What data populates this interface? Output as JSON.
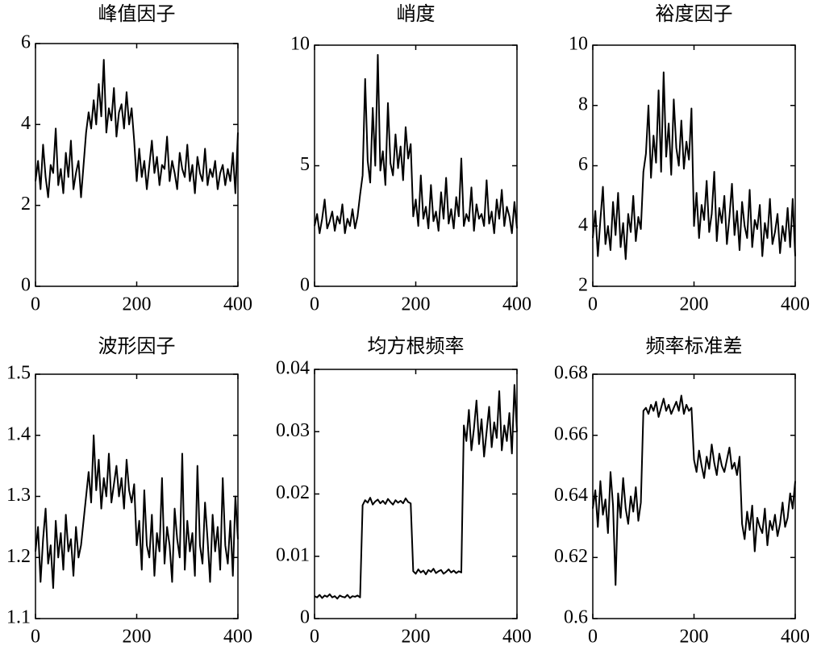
{
  "chart_data": [
    {
      "type": "line",
      "title": "峰值因子",
      "color": "#000000",
      "x": [
        0,
        5,
        10,
        15,
        20,
        25,
        30,
        35,
        40,
        45,
        50,
        55,
        60,
        65,
        70,
        75,
        80,
        85,
        90,
        95,
        100,
        105,
        110,
        115,
        120,
        125,
        130,
        135,
        140,
        145,
        150,
        155,
        160,
        165,
        170,
        175,
        180,
        185,
        190,
        195,
        200,
        205,
        210,
        215,
        220,
        225,
        230,
        235,
        240,
        245,
        250,
        255,
        260,
        265,
        270,
        275,
        280,
        285,
        290,
        295,
        300,
        305,
        310,
        315,
        320,
        325,
        330,
        335,
        340,
        345,
        350,
        355,
        360,
        365,
        370,
        375,
        380,
        385,
        390,
        395,
        400
      ],
      "values": [
        2.6,
        3.1,
        2.4,
        3.5,
        2.7,
        2.2,
        3.0,
        2.8,
        3.9,
        2.5,
        2.9,
        2.3,
        3.3,
        2.7,
        3.6,
        2.4,
        2.8,
        3.1,
        2.2,
        3.0,
        3.8,
        4.3,
        3.9,
        4.6,
        4.0,
        5.0,
        4.2,
        5.6,
        3.8,
        4.4,
        4.1,
        4.9,
        3.7,
        4.3,
        4.5,
        3.9,
        4.8,
        4.0,
        4.4,
        3.6,
        2.6,
        3.4,
        2.7,
        3.1,
        2.4,
        3.0,
        3.6,
        2.8,
        3.2,
        2.5,
        3.0,
        2.9,
        3.7,
        2.6,
        3.1,
        2.8,
        2.4,
        3.3,
        2.9,
        2.7,
        3.5,
        2.6,
        3.0,
        2.3,
        3.2,
        2.8,
        2.6,
        3.4,
        2.5,
        2.9,
        2.7,
        3.1,
        2.4,
        2.8,
        3.0,
        2.5,
        2.9,
        2.6,
        3.3,
        2.3,
        3.8
      ],
      "xlim": [
        0,
        400
      ],
      "xticks": [
        0,
        200,
        400
      ],
      "ylim": [
        0,
        6
      ],
      "yticks": [
        0,
        2,
        4,
        6
      ]
    },
    {
      "type": "line",
      "title": "峭度",
      "color": "#000000",
      "x": [
        0,
        5,
        10,
        15,
        20,
        25,
        30,
        35,
        40,
        45,
        50,
        55,
        60,
        65,
        70,
        75,
        80,
        85,
        90,
        95,
        100,
        105,
        110,
        115,
        120,
        125,
        130,
        135,
        140,
        145,
        150,
        155,
        160,
        165,
        170,
        175,
        180,
        185,
        190,
        195,
        200,
        205,
        210,
        215,
        220,
        225,
        230,
        235,
        240,
        245,
        250,
        255,
        260,
        265,
        270,
        275,
        280,
        285,
        290,
        295,
        300,
        305,
        310,
        315,
        320,
        325,
        330,
        335,
        340,
        345,
        350,
        355,
        360,
        365,
        370,
        375,
        380,
        385,
        390,
        395,
        400
      ],
      "values": [
        2.5,
        3.0,
        2.2,
        2.8,
        3.6,
        2.4,
        2.7,
        3.1,
        2.3,
        2.9,
        2.6,
        3.4,
        2.2,
        2.8,
        2.5,
        3.2,
        2.4,
        2.9,
        3.8,
        4.6,
        8.6,
        5.2,
        4.3,
        7.4,
        5.0,
        9.6,
        4.8,
        5.6,
        4.2,
        7.6,
        5.1,
        4.6,
        6.3,
        4.9,
        5.8,
        4.4,
        6.6,
        5.3,
        5.9,
        2.9,
        3.6,
        2.5,
        4.6,
        2.8,
        3.3,
        2.4,
        4.2,
        2.7,
        3.1,
        2.3,
        3.9,
        2.8,
        4.5,
        2.6,
        3.2,
        2.4,
        3.7,
        2.9,
        5.3,
        2.5,
        3.0,
        2.7,
        4.1,
        2.3,
        3.4,
        2.8,
        3.0,
        2.5,
        4.4,
        2.6,
        3.1,
        2.2,
        3.6,
        2.8,
        4.0,
        2.5,
        3.3,
        2.9,
        2.2,
        3.5,
        2.4
      ],
      "xlim": [
        0,
        400
      ],
      "xticks": [
        0,
        200,
        400
      ],
      "ylim": [
        0,
        10
      ],
      "yticks": [
        0,
        5,
        10
      ]
    },
    {
      "type": "line",
      "title": "裕度因子",
      "color": "#000000",
      "x": [
        0,
        5,
        10,
        15,
        20,
        25,
        30,
        35,
        40,
        45,
        50,
        55,
        60,
        65,
        70,
        75,
        80,
        85,
        90,
        95,
        100,
        105,
        110,
        115,
        120,
        125,
        130,
        135,
        140,
        145,
        150,
        155,
        160,
        165,
        170,
        175,
        180,
        185,
        190,
        195,
        200,
        205,
        210,
        215,
        220,
        225,
        230,
        235,
        240,
        245,
        250,
        255,
        260,
        265,
        270,
        275,
        280,
        285,
        290,
        295,
        300,
        305,
        310,
        315,
        320,
        325,
        330,
        335,
        340,
        345,
        350,
        355,
        360,
        365,
        370,
        375,
        380,
        385,
        390,
        395,
        400
      ],
      "values": [
        3.6,
        4.5,
        3.0,
        4.2,
        5.3,
        3.4,
        4.0,
        3.2,
        4.8,
        3.7,
        5.1,
        3.3,
        4.1,
        2.9,
        4.4,
        3.8,
        5.0,
        3.5,
        4.3,
        3.9,
        5.8,
        6.4,
        8.0,
        5.6,
        7.0,
        6.1,
        8.5,
        5.8,
        9.1,
        6.3,
        7.4,
        5.7,
        8.2,
        6.6,
        6.0,
        7.5,
        5.9,
        6.8,
        6.2,
        7.9,
        4.0,
        5.1,
        3.6,
        4.7,
        4.2,
        5.5,
        3.8,
        4.4,
        5.8,
        3.5,
        4.6,
        4.1,
        5.0,
        3.4,
        4.3,
        5.4,
        3.7,
        4.5,
        3.2,
        4.8,
        4.0,
        3.6,
        5.2,
        3.3,
        4.2,
        3.9,
        4.7,
        3.0,
        4.1,
        3.6,
        4.9,
        3.4,
        3.8,
        4.4,
        3.1,
        4.0,
        3.5,
        4.6,
        3.3,
        4.9,
        3.0
      ],
      "xlim": [
        0,
        400
      ],
      "xticks": [
        0,
        200,
        400
      ],
      "ylim": [
        2,
        10
      ],
      "yticks": [
        2,
        4,
        6,
        8,
        10
      ]
    },
    {
      "type": "line",
      "title": "波形因子",
      "color": "#000000",
      "x": [
        0,
        5,
        10,
        15,
        20,
        25,
        30,
        35,
        40,
        45,
        50,
        55,
        60,
        65,
        70,
        75,
        80,
        85,
        90,
        95,
        100,
        105,
        110,
        115,
        120,
        125,
        130,
        135,
        140,
        145,
        150,
        155,
        160,
        165,
        170,
        175,
        180,
        185,
        190,
        195,
        200,
        205,
        210,
        215,
        220,
        225,
        230,
        235,
        240,
        245,
        250,
        255,
        260,
        265,
        270,
        275,
        280,
        285,
        290,
        295,
        300,
        305,
        310,
        315,
        320,
        325,
        330,
        335,
        340,
        345,
        350,
        355,
        360,
        365,
        370,
        375,
        380,
        385,
        390,
        395,
        400
      ],
      "values": [
        1.21,
        1.25,
        1.16,
        1.23,
        1.28,
        1.19,
        1.22,
        1.15,
        1.26,
        1.2,
        1.24,
        1.18,
        1.27,
        1.21,
        1.23,
        1.17,
        1.25,
        1.2,
        1.22,
        1.26,
        1.3,
        1.34,
        1.29,
        1.4,
        1.31,
        1.36,
        1.28,
        1.33,
        1.3,
        1.37,
        1.29,
        1.32,
        1.35,
        1.3,
        1.33,
        1.28,
        1.36,
        1.31,
        1.29,
        1.32,
        1.22,
        1.26,
        1.18,
        1.31,
        1.22,
        1.2,
        1.27,
        1.17,
        1.24,
        1.21,
        1.33,
        1.19,
        1.25,
        1.22,
        1.16,
        1.28,
        1.23,
        1.2,
        1.37,
        1.18,
        1.26,
        1.21,
        1.24,
        1.17,
        1.35,
        1.22,
        1.19,
        1.29,
        1.23,
        1.16,
        1.27,
        1.21,
        1.25,
        1.18,
        1.33,
        1.22,
        1.19,
        1.26,
        1.17,
        1.3,
        1.23
      ],
      "xlim": [
        0,
        400
      ],
      "xticks": [
        0,
        200,
        400
      ],
      "ylim": [
        1.1,
        1.5
      ],
      "yticks": [
        1.1,
        1.2,
        1.3,
        1.4,
        1.5
      ]
    },
    {
      "type": "line",
      "title": "均方根频率",
      "color": "#000000",
      "x": [
        0,
        5,
        10,
        15,
        20,
        25,
        30,
        35,
        40,
        45,
        50,
        55,
        60,
        65,
        70,
        75,
        80,
        85,
        90,
        95,
        100,
        105,
        110,
        115,
        120,
        125,
        130,
        135,
        140,
        145,
        150,
        155,
        160,
        165,
        170,
        175,
        180,
        185,
        190,
        195,
        200,
        205,
        210,
        215,
        220,
        225,
        230,
        235,
        240,
        245,
        250,
        255,
        260,
        265,
        270,
        275,
        280,
        285,
        290,
        295,
        300,
        305,
        310,
        315,
        320,
        325,
        330,
        335,
        340,
        345,
        350,
        355,
        360,
        365,
        370,
        375,
        380,
        385,
        390,
        395,
        400
      ],
      "values": [
        0.0036,
        0.0034,
        0.0038,
        0.0033,
        0.0037,
        0.0035,
        0.0039,
        0.0034,
        0.0036,
        0.0032,
        0.0037,
        0.0035,
        0.0034,
        0.0038,
        0.0033,
        0.0036,
        0.0035,
        0.0037,
        0.0034,
        0.0182,
        0.019,
        0.0186,
        0.0194,
        0.0183,
        0.0188,
        0.0191,
        0.0185,
        0.0189,
        0.0184,
        0.0192,
        0.0187,
        0.0183,
        0.019,
        0.0186,
        0.0189,
        0.0185,
        0.0193,
        0.0187,
        0.0185,
        0.0076,
        0.0072,
        0.0079,
        0.0074,
        0.0077,
        0.0071,
        0.0078,
        0.0075,
        0.008,
        0.0073,
        0.0076,
        0.0078,
        0.0072,
        0.0075,
        0.0079,
        0.0074,
        0.0077,
        0.0073,
        0.0076,
        0.0074,
        0.031,
        0.0285,
        0.0335,
        0.027,
        0.0305,
        0.035,
        0.028,
        0.032,
        0.026,
        0.03,
        0.034,
        0.0275,
        0.0315,
        0.029,
        0.0365,
        0.027,
        0.031,
        0.0285,
        0.033,
        0.0265,
        0.0375,
        0.03
      ],
      "xlim": [
        0,
        400
      ],
      "xticks": [
        0,
        200,
        400
      ],
      "ylim": [
        0,
        0.04
      ],
      "yticks": [
        0,
        0.01,
        0.02,
        0.03,
        0.04
      ]
    },
    {
      "type": "line",
      "title": "频率标准差",
      "color": "#000000",
      "x": [
        0,
        5,
        10,
        15,
        20,
        25,
        30,
        35,
        40,
        45,
        50,
        55,
        60,
        65,
        70,
        75,
        80,
        85,
        90,
        95,
        100,
        105,
        110,
        115,
        120,
        125,
        130,
        135,
        140,
        145,
        150,
        155,
        160,
        165,
        170,
        175,
        180,
        185,
        190,
        195,
        200,
        205,
        210,
        215,
        220,
        225,
        230,
        235,
        240,
        245,
        250,
        255,
        260,
        265,
        270,
        275,
        280,
        285,
        290,
        295,
        300,
        305,
        310,
        315,
        320,
        325,
        330,
        335,
        340,
        345,
        350,
        355,
        360,
        365,
        370,
        375,
        380,
        385,
        390,
        395,
        400
      ],
      "values": [
        0.636,
        0.642,
        0.63,
        0.645,
        0.634,
        0.639,
        0.628,
        0.648,
        0.637,
        0.611,
        0.641,
        0.633,
        0.646,
        0.636,
        0.631,
        0.64,
        0.635,
        0.643,
        0.632,
        0.638,
        0.668,
        0.669,
        0.667,
        0.67,
        0.668,
        0.671,
        0.666,
        0.669,
        0.672,
        0.668,
        0.67,
        0.667,
        0.669,
        0.671,
        0.668,
        0.673,
        0.667,
        0.67,
        0.668,
        0.669,
        0.652,
        0.648,
        0.655,
        0.65,
        0.646,
        0.653,
        0.649,
        0.657,
        0.651,
        0.647,
        0.654,
        0.65,
        0.648,
        0.652,
        0.656,
        0.649,
        0.651,
        0.647,
        0.653,
        0.631,
        0.626,
        0.635,
        0.629,
        0.637,
        0.622,
        0.633,
        0.63,
        0.628,
        0.636,
        0.624,
        0.632,
        0.629,
        0.634,
        0.627,
        0.631,
        0.638,
        0.63,
        0.633,
        0.641,
        0.636,
        0.645
      ],
      "xlim": [
        0,
        400
      ],
      "xticks": [
        0,
        200,
        400
      ],
      "ylim": [
        0.6,
        0.68
      ],
      "yticks": [
        0.6,
        0.62,
        0.64,
        0.66,
        0.68
      ]
    }
  ]
}
